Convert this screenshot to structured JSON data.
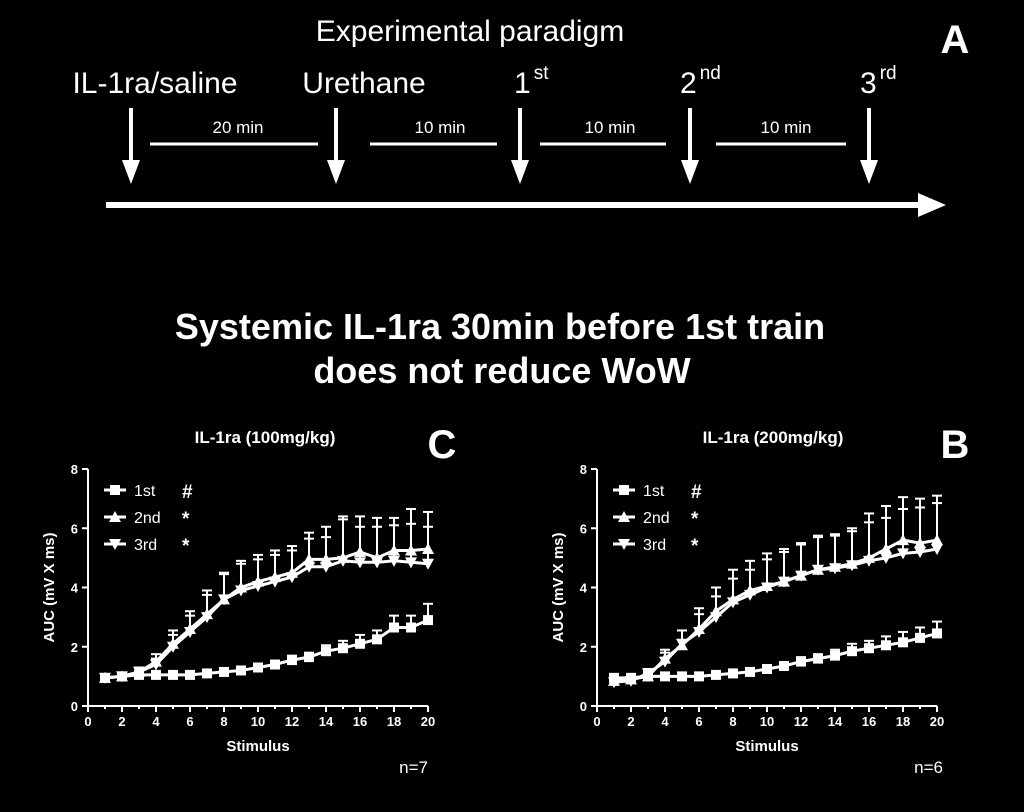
{
  "paradigm": {
    "title": "Experimental paradigm",
    "panel_letter": "A",
    "events": [
      {
        "label": "IL-1ra/saline",
        "sup": ""
      },
      {
        "label": "Urethane",
        "sup": ""
      },
      {
        "label": "1",
        "sup": "st"
      },
      {
        "label": "2",
        "sup": "nd"
      },
      {
        "label": "3",
        "sup": "rd"
      }
    ],
    "intervals": [
      "20 min",
      "10 min",
      "10 min",
      "10 min"
    ]
  },
  "headline": {
    "line1": "Systemic IL-1ra 30min before 1st train",
    "line2": "does not reduce WoW"
  },
  "chart_data": [
    {
      "type": "line",
      "panel_letter": "C",
      "title": "IL-1ra (100mg/kg)",
      "xlabel": "Stimulus",
      "ylabel": "AUC (mV X ms)",
      "xlim": [
        0,
        20
      ],
      "ylim": [
        0,
        8
      ],
      "xticks": [
        0,
        2,
        4,
        6,
        8,
        10,
        12,
        14,
        16,
        18,
        20
      ],
      "yticks": [
        0,
        2,
        4,
        6,
        8
      ],
      "n_label": "n=7",
      "legend_position": "top-left",
      "x": [
        1,
        2,
        3,
        4,
        5,
        6,
        7,
        8,
        9,
        10,
        11,
        12,
        13,
        14,
        15,
        16,
        17,
        18,
        19,
        20
      ],
      "series": [
        {
          "name": "1st",
          "marker": "square",
          "mark": "#",
          "values": [
            0.95,
            1.0,
            1.05,
            1.05,
            1.05,
            1.05,
            1.1,
            1.15,
            1.2,
            1.3,
            1.4,
            1.55,
            1.65,
            1.85,
            1.95,
            2.1,
            2.25,
            2.65,
            2.65,
            2.9
          ],
          "errors": [
            0.05,
            0.05,
            0.05,
            0.05,
            0.05,
            0.05,
            0.05,
            0.05,
            0.1,
            0.1,
            0.1,
            0.15,
            0.15,
            0.2,
            0.25,
            0.3,
            0.3,
            0.4,
            0.4,
            0.55
          ]
        },
        {
          "name": "2nd",
          "marker": "triangle-up",
          "mark": "*",
          "values": [
            0.95,
            1.0,
            1.15,
            1.5,
            2.1,
            2.6,
            3.1,
            3.6,
            4.0,
            4.2,
            4.35,
            4.5,
            4.95,
            4.95,
            5.0,
            5.2,
            5.0,
            5.25,
            5.25,
            5.3
          ],
          "errors": [
            0.05,
            0.1,
            0.15,
            0.25,
            0.45,
            0.6,
            0.8,
            0.9,
            0.9,
            0.9,
            0.9,
            0.9,
            0.9,
            1.1,
            1.4,
            1.2,
            1.35,
            1.1,
            1.4,
            1.25
          ]
        },
        {
          "name": "3rd",
          "marker": "triangle-down",
          "mark": "*",
          "values": [
            0.95,
            1.0,
            1.15,
            1.4,
            2.0,
            2.5,
            3.0,
            3.6,
            3.9,
            4.05,
            4.2,
            4.35,
            4.7,
            4.7,
            4.9,
            4.85,
            4.85,
            4.9,
            4.85,
            4.8
          ],
          "errors": [
            0.05,
            0.1,
            0.15,
            0.2,
            0.4,
            0.55,
            0.75,
            0.85,
            0.9,
            0.9,
            0.9,
            0.9,
            0.95,
            1.0,
            1.4,
            1.2,
            1.2,
            1.2,
            1.3,
            1.25
          ]
        }
      ]
    },
    {
      "type": "line",
      "panel_letter": "B",
      "title": "IL-1ra (200mg/kg)",
      "xlabel": "Stimulus",
      "ylabel": "AUC (mV X ms)",
      "xlim": [
        0,
        20
      ],
      "ylim": [
        0,
        8
      ],
      "xticks": [
        0,
        2,
        4,
        6,
        8,
        10,
        12,
        14,
        16,
        18,
        20
      ],
      "yticks": [
        0,
        2,
        4,
        6,
        8
      ],
      "n_label": "n=6",
      "legend_position": "top-left",
      "x": [
        1,
        2,
        3,
        4,
        5,
        6,
        7,
        8,
        9,
        10,
        11,
        12,
        13,
        14,
        15,
        16,
        17,
        18,
        19,
        20
      ],
      "series": [
        {
          "name": "1st",
          "marker": "square",
          "mark": "#",
          "values": [
            0.95,
            0.95,
            1.0,
            1.0,
            1.0,
            1.0,
            1.05,
            1.1,
            1.15,
            1.25,
            1.35,
            1.5,
            1.6,
            1.7,
            1.85,
            1.95,
            2.05,
            2.15,
            2.3,
            2.45
          ],
          "errors": [
            0.05,
            0.05,
            0.05,
            0.05,
            0.05,
            0.05,
            0.05,
            0.05,
            0.1,
            0.1,
            0.1,
            0.15,
            0.15,
            0.2,
            0.25,
            0.25,
            0.3,
            0.35,
            0.35,
            0.4
          ]
        },
        {
          "name": "2nd",
          "marker": "triangle-up",
          "mark": "*",
          "values": [
            0.85,
            0.9,
            1.0,
            1.6,
            2.05,
            2.6,
            3.2,
            3.6,
            3.9,
            4.05,
            4.2,
            4.4,
            4.6,
            4.7,
            4.8,
            5.0,
            5.3,
            5.6,
            5.5,
            5.6
          ],
          "errors": [
            0.05,
            0.1,
            0.15,
            0.3,
            0.5,
            0.7,
            0.8,
            1.0,
            1.0,
            1.1,
            1.1,
            1.1,
            1.15,
            1.1,
            1.2,
            1.5,
            1.45,
            1.45,
            1.5,
            1.5
          ]
        },
        {
          "name": "3rd",
          "marker": "triangle-down",
          "mark": "*",
          "values": [
            0.8,
            0.85,
            1.1,
            1.5,
            2.1,
            2.5,
            3.0,
            3.5,
            3.75,
            4.0,
            4.2,
            4.4,
            4.6,
            4.65,
            4.75,
            4.9,
            5.0,
            5.15,
            5.2,
            5.3
          ],
          "errors": [
            0.05,
            0.1,
            0.15,
            0.3,
            0.45,
            0.6,
            0.7,
            0.8,
            0.85,
            0.95,
            1.0,
            1.05,
            1.1,
            1.1,
            1.15,
            1.3,
            1.35,
            1.5,
            1.5,
            1.55
          ]
        }
      ]
    }
  ]
}
